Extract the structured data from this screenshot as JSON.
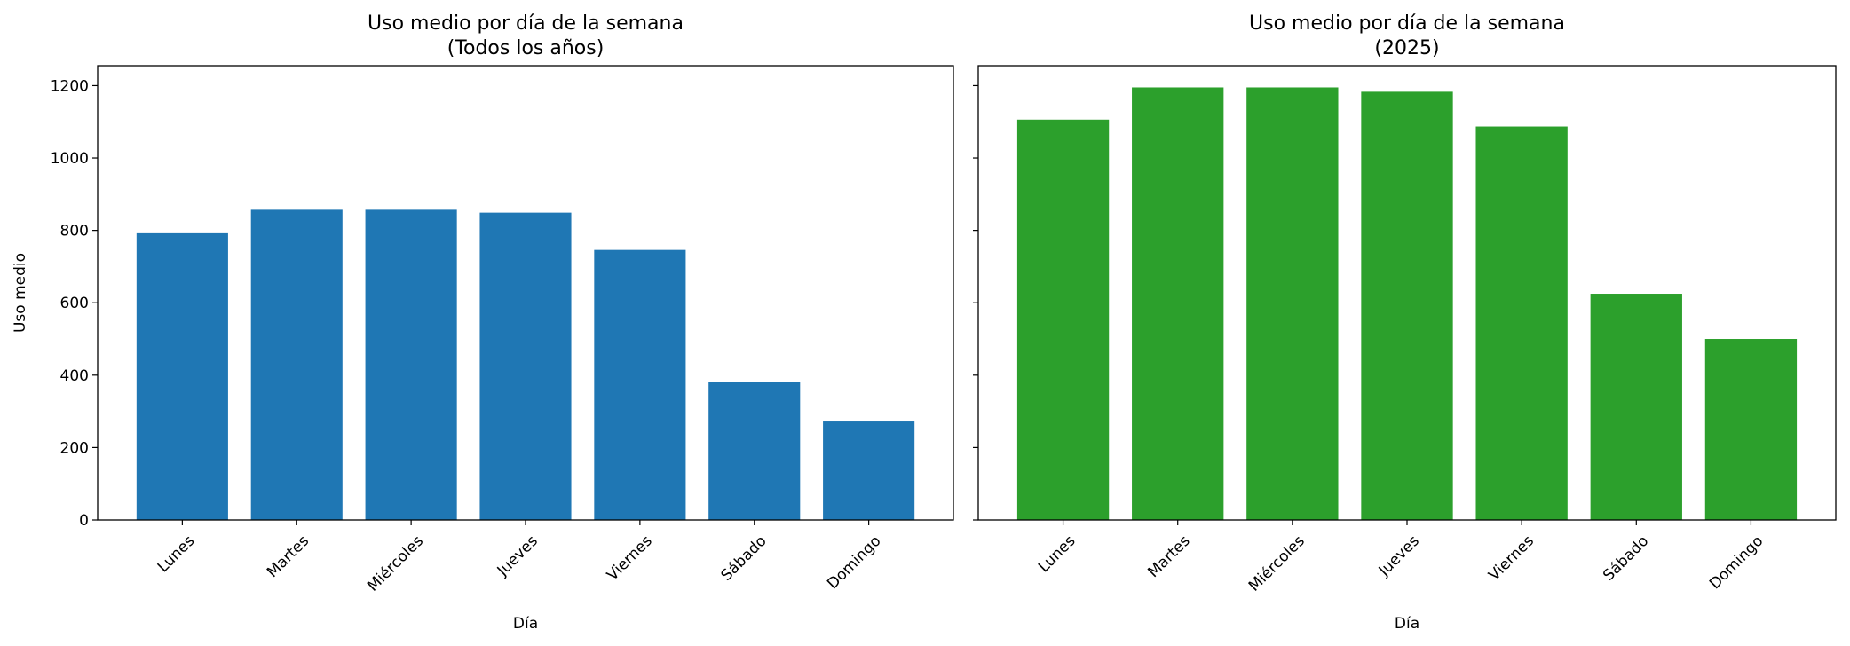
{
  "chart_data": [
    {
      "type": "bar",
      "title": "Uso medio por día de la semana",
      "subtitle": "(Todos los años)",
      "categories": [
        "Lunes",
        "Martes",
        "Miércoles",
        "Jueves",
        "Viernes",
        "Sábado",
        "Domingo"
      ],
      "values": [
        792,
        857,
        857,
        849,
        746,
        382,
        272
      ],
      "color": "#1f77b4",
      "xlabel": "Día",
      "ylabel": "Uso medio",
      "ylim": [
        0,
        1255
      ],
      "yticks": [
        0,
        200,
        400,
        600,
        800,
        1000,
        1200
      ],
      "ytick_labels": true
    },
    {
      "type": "bar",
      "title": "Uso medio por día de la semana",
      "subtitle": "(2025)",
      "categories": [
        "Lunes",
        "Martes",
        "Miércoles",
        "Jueves",
        "Viernes",
        "Sábado",
        "Domingo"
      ],
      "values": [
        1106,
        1195,
        1195,
        1183,
        1087,
        625,
        500
      ],
      "color": "#2ca02c",
      "xlabel": "Día",
      "ylim": [
        0,
        1255
      ],
      "yticks": [
        0,
        200,
        400,
        600,
        800,
        1000,
        1200
      ],
      "ytick_labels": false
    }
  ]
}
